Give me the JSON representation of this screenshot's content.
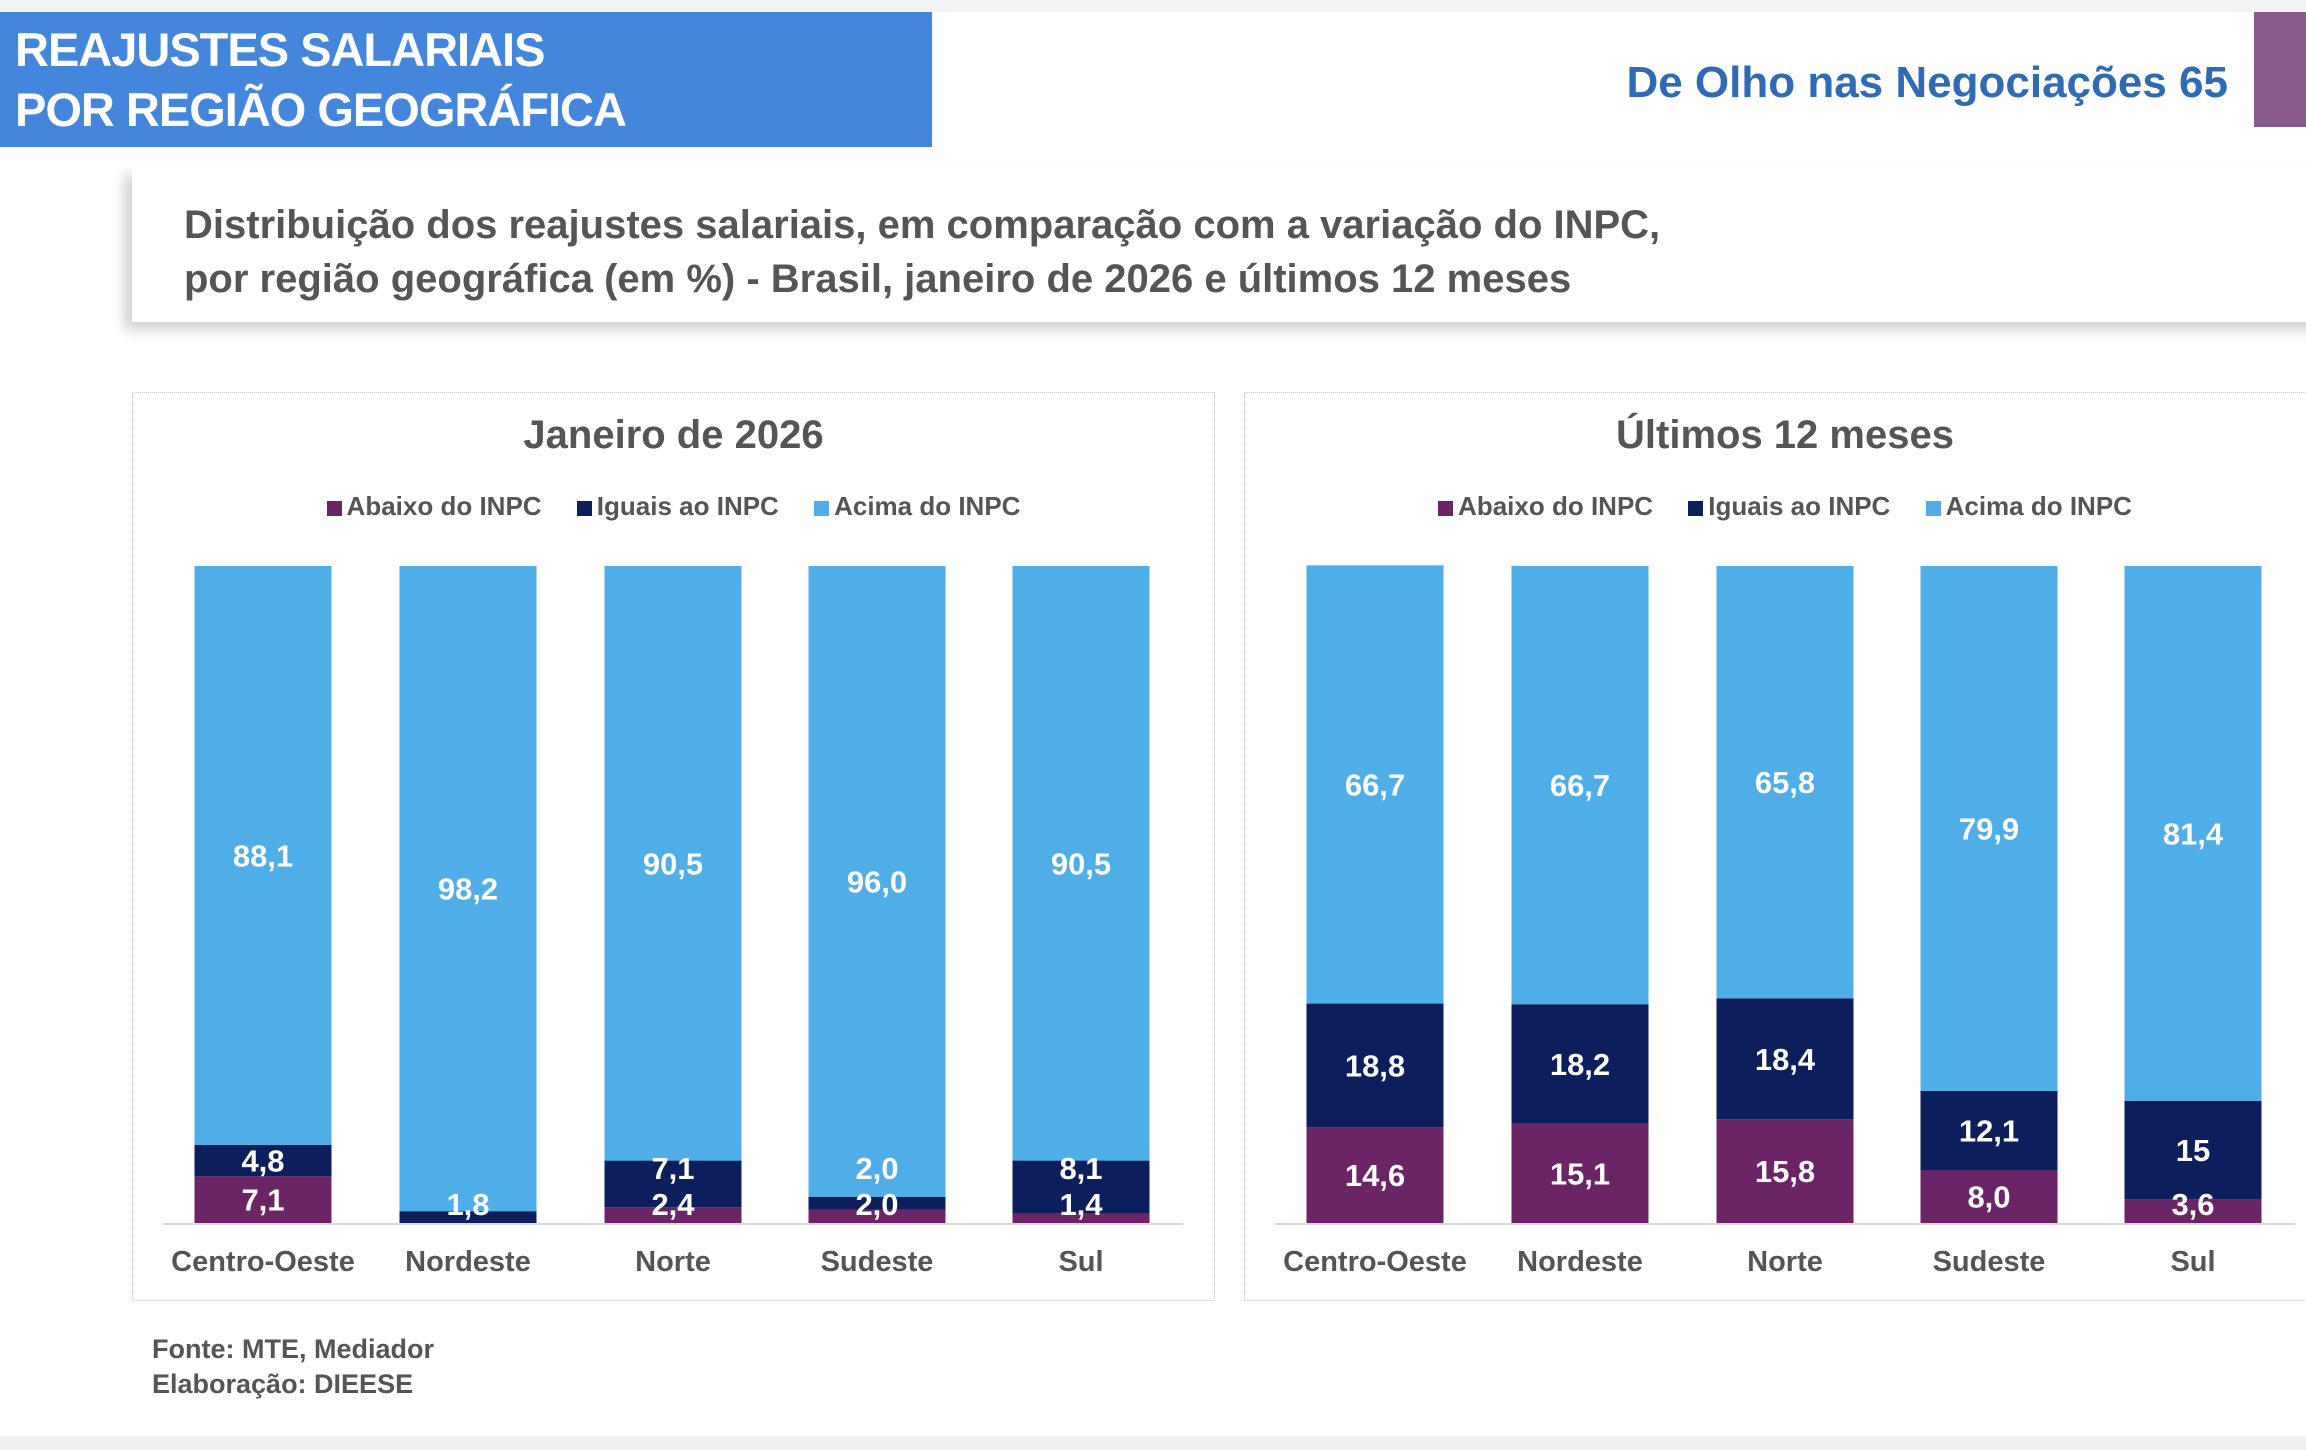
{
  "header": {
    "title_line1": "REAJUSTES SALARIAIS",
    "title_line2": "POR REGIÃO GEOGRÁFICA",
    "brand": "De Olho nas Negociações 65"
  },
  "subtitle": {
    "line1": "Distribuição dos reajustes salariais, em comparação com a variação do INPC,",
    "line2": "por região geográfica (em %) - Brasil, janeiro de 2026 e últimos 12 meses"
  },
  "colors": {
    "abaixo": "#6b2466",
    "iguais": "#0c1f5c",
    "acima": "#4fade8",
    "header": "#4486dc"
  },
  "chart_data": [
    {
      "type": "bar",
      "stacked": true,
      "title": "Janeiro de 2026",
      "ylim": [
        0,
        100
      ],
      "grid": false,
      "legend": "top",
      "categories": [
        "Centro-Oeste",
        "Nordeste",
        "Norte",
        "Sudeste",
        "Sul"
      ],
      "series": [
        {
          "name": "Abaixo do INPC",
          "values": [
            7.1,
            0,
            2.4,
            2.0,
            1.4
          ],
          "labels": [
            "7,1",
            null,
            "2,4",
            "2,0",
            "1,4"
          ]
        },
        {
          "name": "Iguais ao INPC",
          "values": [
            4.8,
            1.8,
            7.1,
            2.0,
            8.1
          ],
          "labels": [
            "4,8",
            "1,8",
            "7,1",
            "2,0",
            "8,1"
          ]
        },
        {
          "name": "Acima do INPC",
          "values": [
            88.1,
            98.2,
            90.5,
            96.0,
            90.5
          ],
          "labels": [
            "88,1",
            "98,2",
            "90,5",
            "96,0",
            "90,5"
          ]
        }
      ]
    },
    {
      "type": "bar",
      "stacked": true,
      "title": "Últimos 12 meses",
      "ylim": [
        0,
        100
      ],
      "grid": false,
      "legend": "top",
      "categories": [
        "Centro-Oeste",
        "Nordeste",
        "Norte",
        "Sudeste",
        "Sul"
      ],
      "series": [
        {
          "name": "Abaixo do INPC",
          "values": [
            14.6,
            15.1,
            15.8,
            8.0,
            3.6
          ],
          "labels": [
            "14,6",
            "15,1",
            "15,8",
            "8,0",
            "3,6"
          ]
        },
        {
          "name": "Iguais ao INPC",
          "values": [
            18.8,
            18.2,
            18.4,
            12.1,
            15
          ],
          "labels": [
            "18,8",
            "18,2",
            "18,4",
            "12,1",
            "15"
          ]
        },
        {
          "name": "Acima do INPC",
          "values": [
            66.7,
            66.7,
            65.8,
            79.9,
            81.4
          ],
          "labels": [
            "66,7",
            "66,7",
            "65,8",
            "79,9",
            "81,4"
          ]
        }
      ]
    }
  ],
  "footer": {
    "source": "Fonte: MTE, Mediador",
    "elaboration": "Elaboração: DIEESE"
  }
}
